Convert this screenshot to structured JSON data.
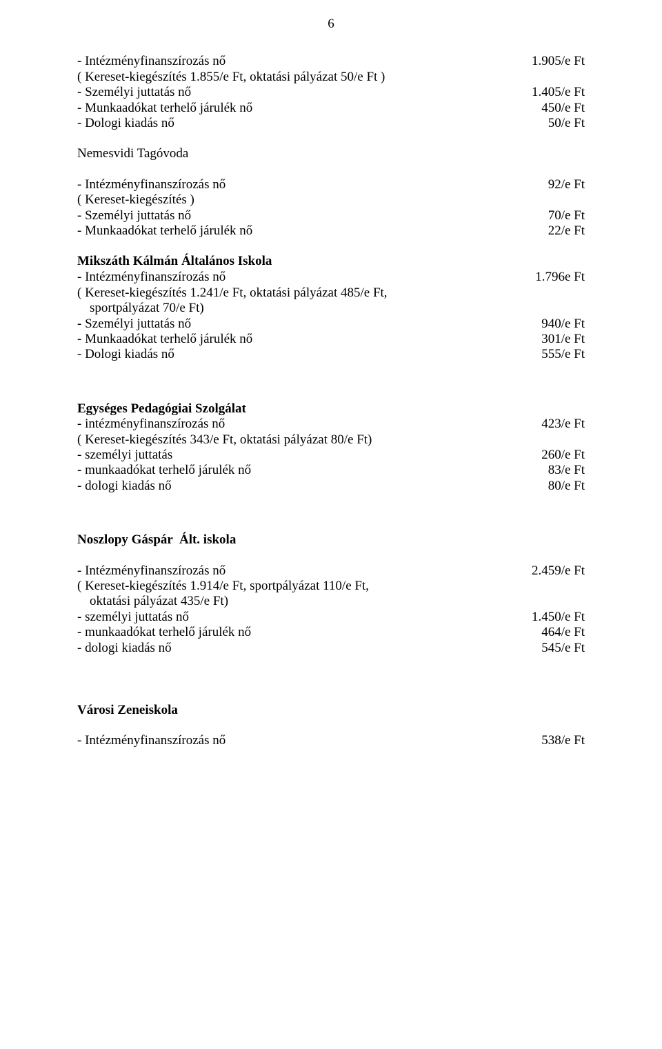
{
  "pageNumber": "6",
  "block1": {
    "l1_left": "- Intézményfinanszírozás nő",
    "l1_right": "1.905/e Ft",
    "l2_left": "( Kereset-kiegészítés 1.855/e Ft, oktatási pályázat 50/e Ft )",
    "l3_left": "- Személyi juttatás nő",
    "l3_right": "1.405/e Ft",
    "l4_left": "- Munkaadókat terhelő járulék nő",
    "l4_right": "450/e Ft",
    "l5_left": "- Dologi kiadás nő",
    "l5_right": "50/e Ft"
  },
  "nemesvidi": {
    "title": "Nemesvidi Tagóvoda",
    "l1_left": "- Intézményfinanszírozás nő",
    "l1_right": "92/e Ft",
    "l2_left": "( Kereset-kiegészítés )",
    "l3_left": "- Személyi juttatás nő",
    "l3_right": "70/e Ft",
    "l4_left": "- Munkaadókat terhelő járulék nő",
    "l4_right": "22/e Ft"
  },
  "mikszath": {
    "title": "Mikszáth Kálmán Általános Iskola",
    "title_right": "1.796e Ft",
    "l1_left": "- Intézményfinanszírozás nő",
    "l2a": "( Kereset-kiegészítés 1.241/e Ft, oktatási pályázat 485/e Ft,",
    "l2b": "sportpályázat 70/e Ft)",
    "l3_left": "- Személyi juttatás nő",
    "l3_right": "940/e Ft",
    "l4_left": "- Munkaadókat terhelő járulék nő",
    "l4_right": "301/e Ft",
    "l5_left": "- Dologi kiadás nő",
    "l5_right": "555/e Ft"
  },
  "eps": {
    "title": "Egységes Pedagógiai Szolgálat",
    "l1_left": "- intézményfinanszírozás nő",
    "l1_right": "423/e Ft",
    "l2_left": "( Kereset-kiegészítés 343/e Ft, oktatási pályázat 80/e Ft)",
    "l3_left": "- személyi juttatás",
    "l3_right": "260/e Ft",
    "l4_left": "- munkaadókat terhelő járulék nő",
    "l4_right": "83/e Ft",
    "l5_left": "- dologi kiadás nő",
    "l5_right": "80/e Ft"
  },
  "noszlopy": {
    "title": "Noszlopy Gáspár  Ált. iskola",
    "l1_left": "- Intézményfinanszírozás nő",
    "l1_right": "2.459/e Ft",
    "l2a": "( Kereset-kiegészítés 1.914/e Ft, sportpályázat 110/e Ft,",
    "l2b": "oktatási pályázat 435/e Ft)",
    "l3_left": "- személyi juttatás nő",
    "l3_right": "1.450/e Ft",
    "l4_left": "- munkaadókat terhelő járulék nő",
    "l4_right": "464/e Ft",
    "l5_left": "- dologi kiadás nő",
    "l5_right": "545/e Ft"
  },
  "zeneiskola": {
    "title": "Városi Zeneiskola",
    "l1_left": "- Intézményfinanszírozás nő",
    "l1_right": "538/e Ft"
  }
}
